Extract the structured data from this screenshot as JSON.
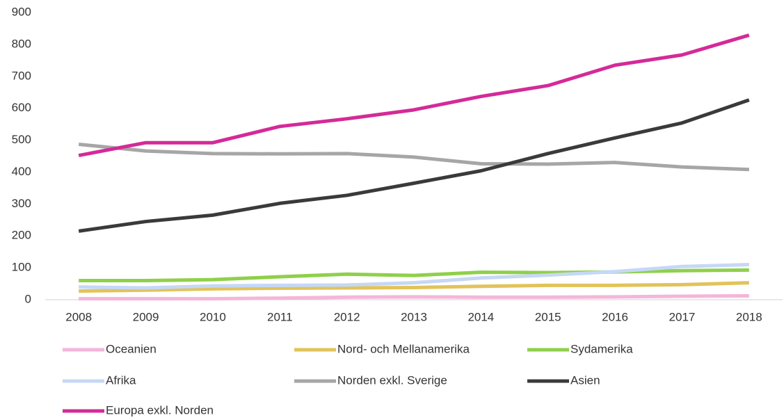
{
  "chart_data": {
    "type": "line",
    "categories": [
      "2008",
      "2009",
      "2010",
      "2011",
      "2012",
      "2013",
      "2014",
      "2015",
      "2016",
      "2017",
      "2018"
    ],
    "series": [
      {
        "name": "Oceanien",
        "color": "#f4b6d9",
        "values": [
          3,
          3,
          3,
          5,
          8,
          9,
          8,
          8,
          9,
          11,
          12
        ]
      },
      {
        "name": "Nord- och Mellanamerika",
        "color": "#e2c35a",
        "values": [
          27,
          30,
          34,
          36,
          37,
          38,
          42,
          45,
          45,
          47,
          53
        ]
      },
      {
        "name": "Sydamerika",
        "color": "#8fd04a",
        "values": [
          60,
          60,
          63,
          72,
          80,
          76,
          86,
          85,
          87,
          91,
          93
        ]
      },
      {
        "name": "Afrika",
        "color": "#c5d8f5",
        "values": [
          40,
          37,
          43,
          45,
          46,
          53,
          68,
          77,
          88,
          104,
          110
        ]
      },
      {
        "name": "Norden exkl. Sverige",
        "color": "#a6a6a6",
        "values": [
          487,
          466,
          458,
          457,
          458,
          447,
          426,
          425,
          430,
          416,
          408
        ]
      },
      {
        "name": "Asien",
        "color": "#3a3a3a",
        "values": [
          215,
          245,
          265,
          302,
          327,
          365,
          404,
          458,
          507,
          554,
          626
        ]
      },
      {
        "name": "Europa exkl. Norden",
        "color": "#d42a98",
        "values": [
          452,
          492,
          492,
          543,
          567,
          595,
          637,
          671,
          735,
          767,
          829
        ]
      }
    ],
    "ylim": [
      0,
      900
    ],
    "yticks": [
      0,
      100,
      200,
      300,
      400,
      500,
      600,
      700,
      800,
      900
    ],
    "grid": false,
    "legend": "bottom"
  }
}
